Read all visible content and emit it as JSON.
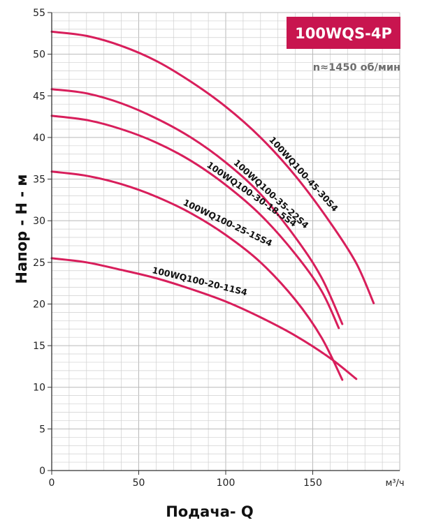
{
  "chart_data": {
    "type": "line",
    "title": "100WQS-4P",
    "subtitle": "n≈1450 об/мин",
    "xlabel": "Подача- Q",
    "ylabel": "Напор - Н - м",
    "x_unit": "м³/ч",
    "xlim": [
      0,
      200
    ],
    "ylim": [
      0,
      55
    ],
    "x_ticks": [
      0,
      50,
      100,
      150
    ],
    "y_ticks": [
      0,
      5,
      10,
      15,
      20,
      25,
      30,
      35,
      40,
      45,
      50,
      55
    ],
    "grid": true,
    "colors": {
      "curve": "#d81e5b",
      "badge": "#c8154f",
      "grid": "#cfcfcf"
    },
    "series": [
      {
        "name": "100WQ100-45-30S4",
        "x": [
          0,
          20,
          40,
          60,
          80,
          100,
          120,
          140,
          160,
          175,
          185
        ],
        "y": [
          52.7,
          52.2,
          51,
          49.2,
          46.7,
          43.7,
          40,
          35.4,
          29.8,
          24.9,
          20.1
        ]
      },
      {
        "name": "100WQ100-35-22S4",
        "x": [
          0,
          20,
          40,
          60,
          80,
          100,
          120,
          140,
          155,
          167
        ],
        "y": [
          45.8,
          45.3,
          44.1,
          42.3,
          40,
          37,
          33.2,
          28,
          23.2,
          17.6
        ]
      },
      {
        "name": "100WQ100-30-18.5S4",
        "x": [
          0,
          20,
          40,
          60,
          80,
          100,
          120,
          140,
          155,
          165
        ],
        "y": [
          42.6,
          42.1,
          41,
          39.4,
          37.2,
          34.3,
          30.7,
          26,
          21.6,
          17.1
        ]
      },
      {
        "name": "100WQ100-25-15S4",
        "x": [
          0,
          20,
          40,
          60,
          80,
          100,
          120,
          140,
          155,
          167
        ],
        "y": [
          35.9,
          35.4,
          34.4,
          32.9,
          30.9,
          28.3,
          25,
          20.5,
          16,
          10.9
        ]
      },
      {
        "name": "100WQ100-20-11S4",
        "x": [
          0,
          20,
          40,
          60,
          80,
          100,
          120,
          140,
          160,
          175
        ],
        "y": [
          25.5,
          25,
          24.1,
          23.1,
          21.8,
          20.3,
          18.4,
          16.2,
          13.5,
          11
        ]
      }
    ]
  }
}
